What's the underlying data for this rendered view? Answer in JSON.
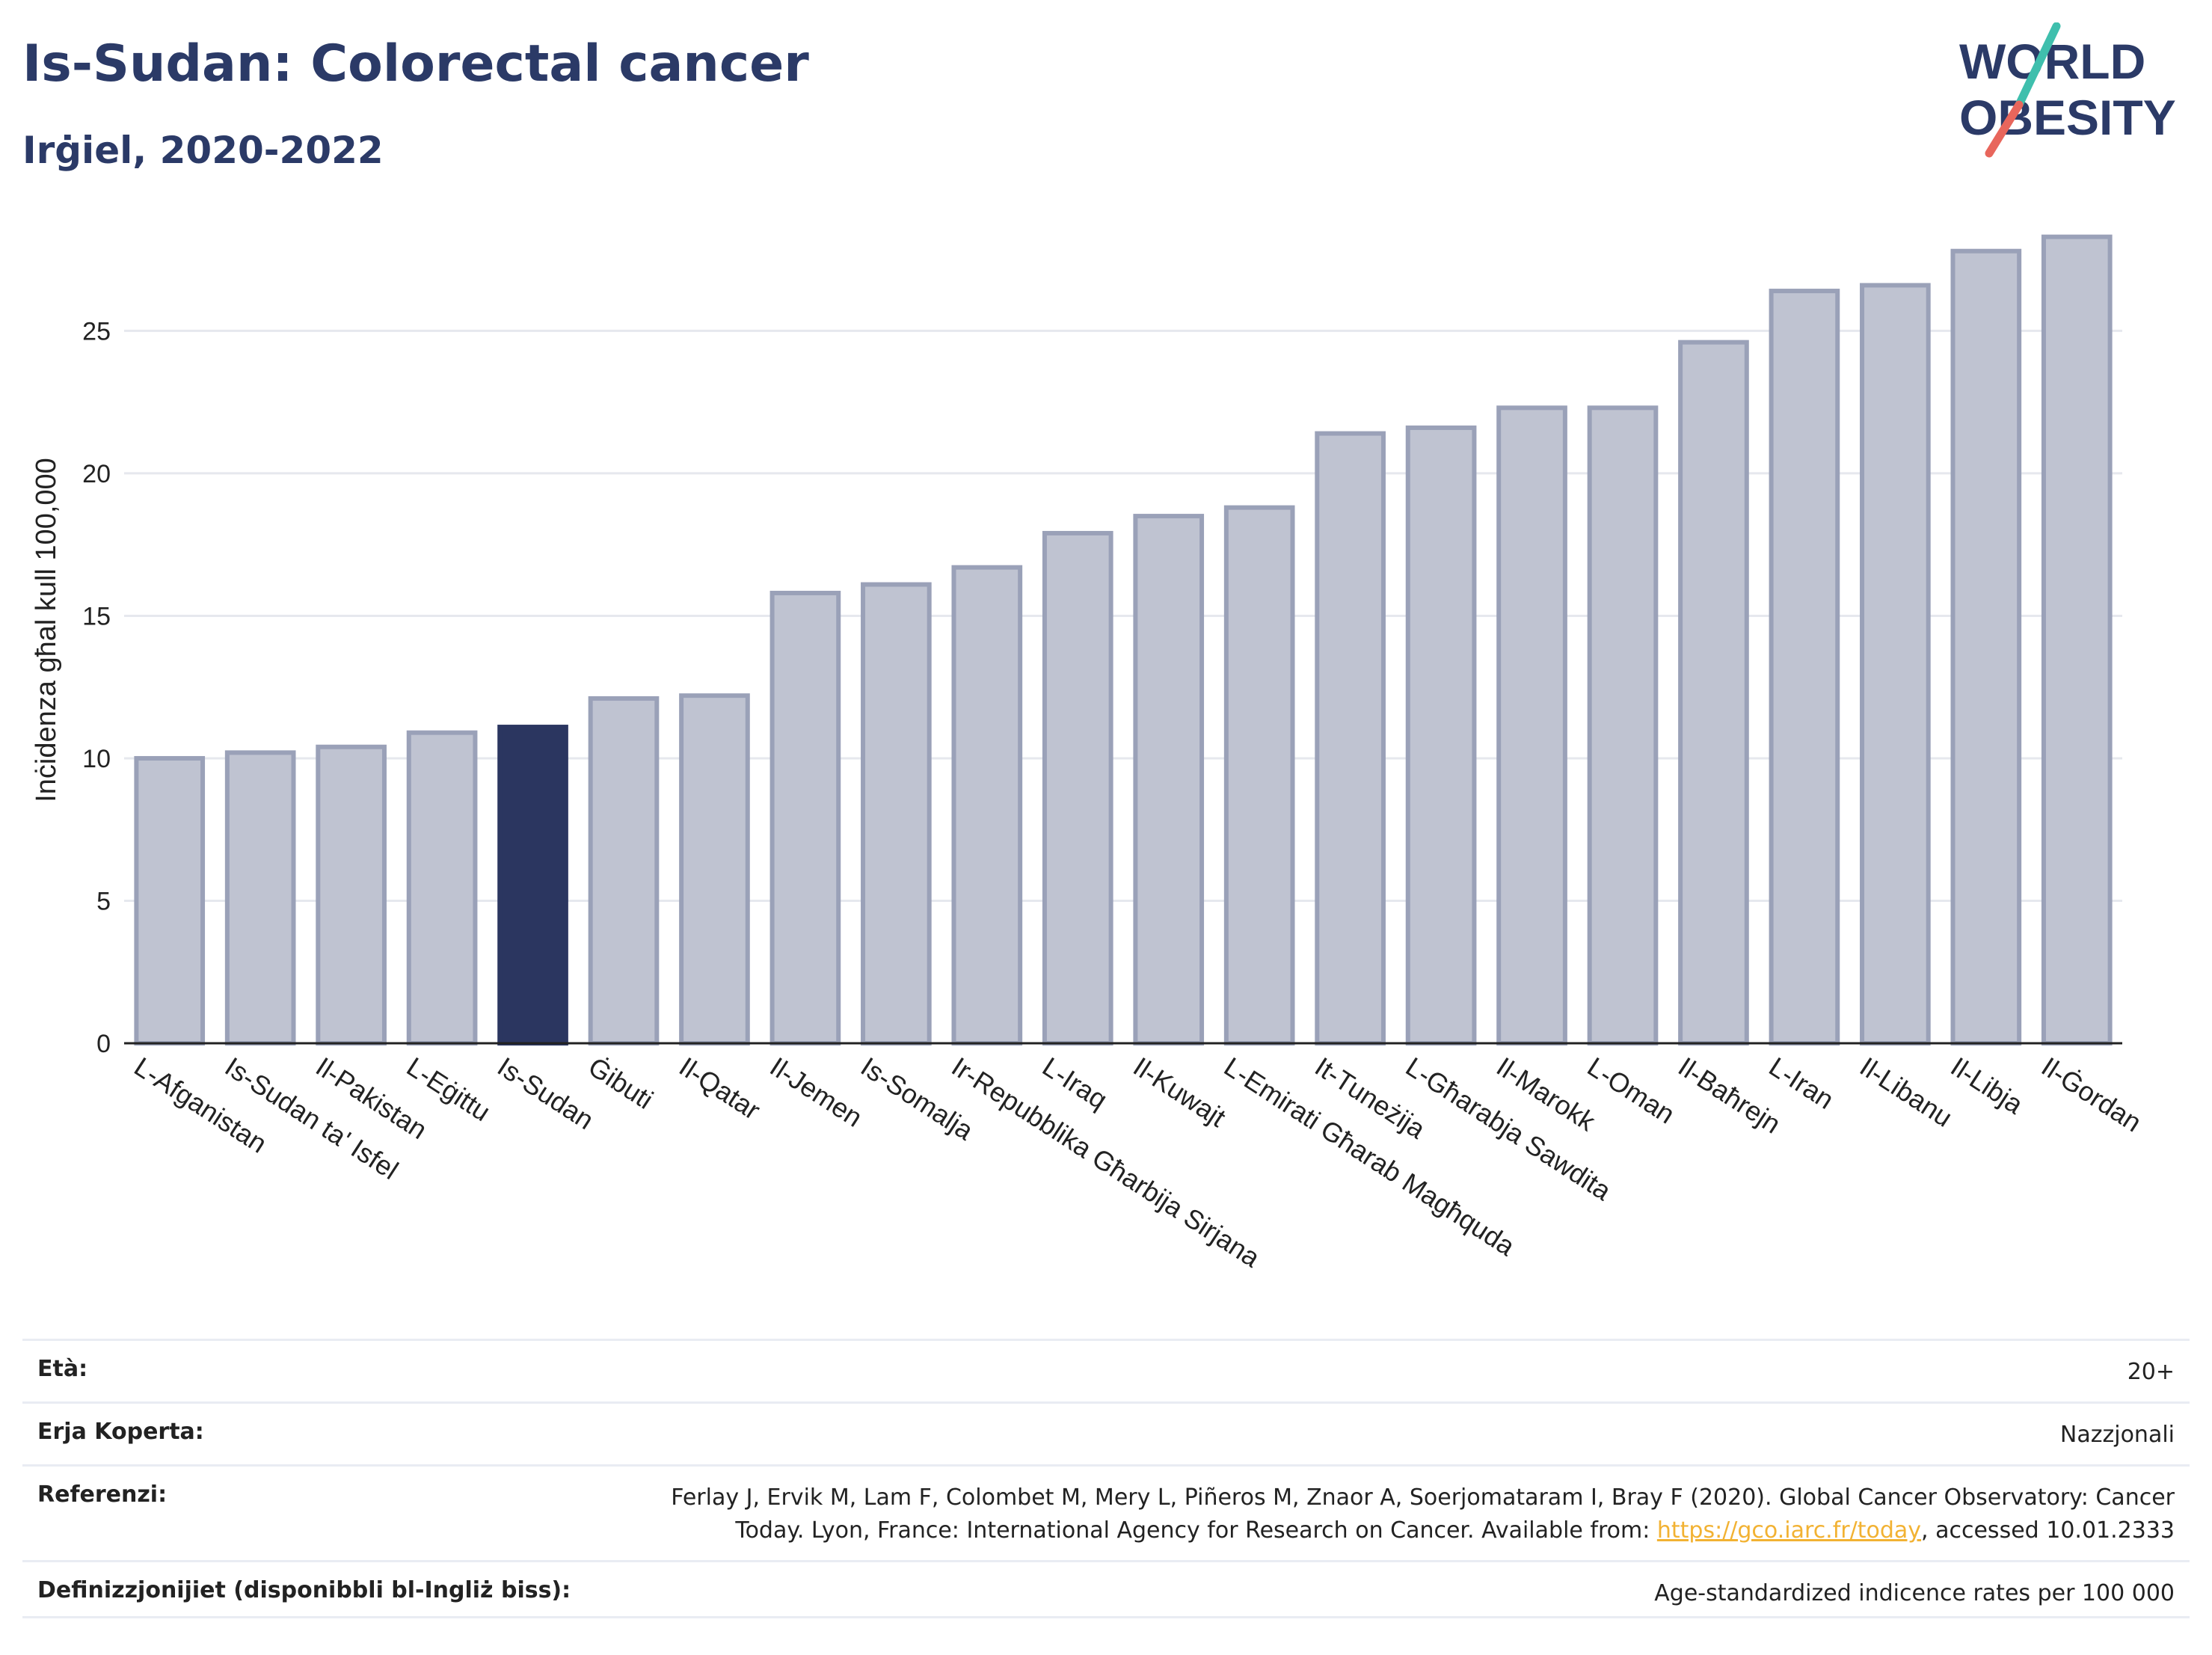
{
  "header": {
    "title": "Is-Sudan: Colorectal cancer",
    "subtitle": "Irġiel, 2020-2022"
  },
  "logo": {
    "line1": "WORLD",
    "line2": "OBESITY",
    "accent_colors": [
      "#3fbfad",
      "#e8665c"
    ]
  },
  "colors": {
    "bar": "#bfc3d1",
    "bar_border": "#9aa1b8",
    "highlight": "#2b3660",
    "text_dark": "#2b3a67",
    "link": "#f2b233"
  },
  "chart_data": {
    "type": "bar",
    "ylabel": "Inċidenza għal kull 100,000",
    "xlabel": "",
    "ylim": [
      0,
      29
    ],
    "yticks": [
      0,
      5,
      10,
      15,
      20,
      25
    ],
    "grid": true,
    "highlight_index": 4,
    "categories": [
      "L-Afganistan",
      "Is-Sudan ta' Isfel",
      "Il-Pakistan",
      "L-Eġittu",
      "Is-Sudan",
      "Ġibuti",
      "Il-Qatar",
      "Il-Jemen",
      "Is-Somalja",
      "Ir-Repubblika Għarbija Sirjana",
      "L-Iraq",
      "Il-Kuwajt",
      "L-Emirati Għarab Magħquda",
      "It-Tuneżija",
      "L-Għarabja Sawdita",
      "Il-Marokk",
      "L-Oman",
      "Il-Baħrejn",
      "L-Iran",
      "Il-Libanu",
      "Il-Libja",
      "Il-Ġordan"
    ],
    "values": [
      10.0,
      10.2,
      10.4,
      10.9,
      11.1,
      12.1,
      12.2,
      15.8,
      16.1,
      16.7,
      17.9,
      18.5,
      18.8,
      21.4,
      21.6,
      22.3,
      22.3,
      24.6,
      26.4,
      26.6,
      27.8,
      28.3
    ]
  },
  "meta": {
    "age_label": "Età:",
    "age_value": "20+",
    "area_label": "Erja Koperta:",
    "area_value": "Nazzjonali",
    "ref_label": "Referenzi:",
    "ref_line1": "Ferlay J, Ervik M, Lam F, Colombet M, Mery L, Piñeros M, Znaor A, Soerjomataram I, Bray F (2020). Global Cancer Observatory: Cancer",
    "ref_line2_pre": "Today. Lyon, France: International Agency for Research on Cancer. Available from: ",
    "ref_link": "https://gco.iarc.fr/today",
    "ref_line2_post": ", accessed 10.01.2333",
    "def_label": "Definizzjonijiet (disponibbli bl-Ingliż biss):",
    "def_value": "Age-standardized indicence rates per 100 000"
  }
}
